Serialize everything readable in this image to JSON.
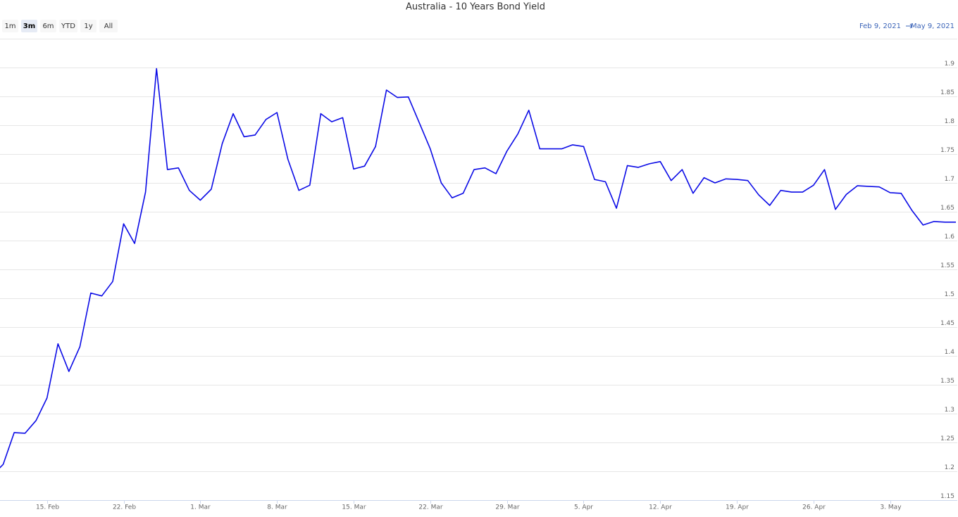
{
  "chart_data": {
    "type": "line",
    "title": "Australia - 10 Years Bond Yield",
    "range_buttons": [
      "1m",
      "3m",
      "6m",
      "YTD",
      "1y",
      "All"
    ],
    "selected_button": "3m",
    "range": {
      "from": "Feb 9, 2021",
      "to": "May 9, 2021"
    },
    "color": "#0a0ae6",
    "grid": true,
    "x": [
      "2021-02-10",
      "2021-02-11",
      "2021-02-12",
      "2021-02-13",
      "2021-02-14",
      "2021-02-15",
      "2021-02-16",
      "2021-02-17",
      "2021-02-18",
      "2021-02-19",
      "2021-02-20",
      "2021-02-21",
      "2021-02-22",
      "2021-02-23",
      "2021-02-24",
      "2021-02-25",
      "2021-02-26",
      "2021-02-27",
      "2021-02-28",
      "2021-03-01",
      "2021-03-02",
      "2021-03-03",
      "2021-03-04",
      "2021-03-05",
      "2021-03-06",
      "2021-03-07",
      "2021-03-08",
      "2021-03-09",
      "2021-03-10",
      "2021-03-11",
      "2021-03-12",
      "2021-03-13",
      "2021-03-14",
      "2021-03-15",
      "2021-03-16",
      "2021-03-17",
      "2021-03-18",
      "2021-03-19",
      "2021-03-20",
      "2021-03-21",
      "2021-03-22",
      "2021-03-23",
      "2021-03-24",
      "2021-03-25",
      "2021-03-26",
      "2021-03-27",
      "2021-03-28",
      "2021-03-29",
      "2021-03-30",
      "2021-03-31",
      "2021-04-01",
      "2021-04-02",
      "2021-04-03",
      "2021-04-04",
      "2021-04-05",
      "2021-04-06",
      "2021-04-07",
      "2021-04-08",
      "2021-04-09",
      "2021-04-10",
      "2021-04-11",
      "2021-04-12",
      "2021-04-13",
      "2021-04-14",
      "2021-04-15",
      "2021-04-16",
      "2021-04-17",
      "2021-04-18",
      "2021-04-19",
      "2021-04-20",
      "2021-04-21",
      "2021-04-22",
      "2021-04-23",
      "2021-04-24",
      "2021-04-25",
      "2021-04-26",
      "2021-04-27",
      "2021-04-28",
      "2021-04-29",
      "2021-04-30",
      "2021-05-01",
      "2021-05-02",
      "2021-05-03",
      "2021-05-04",
      "2021-05-05",
      "2021-05-06",
      "2021-05-07",
      "2021-05-08",
      "2021-05-09"
    ],
    "values": [
      1.193,
      1.212,
      1.267,
      1.266,
      1.288,
      1.327,
      1.421,
      1.373,
      1.416,
      1.509,
      1.504,
      1.529,
      1.629,
      1.595,
      1.684,
      1.898,
      1.723,
      1.726,
      1.687,
      1.67,
      1.689,
      1.768,
      1.82,
      1.78,
      1.783,
      1.81,
      1.822,
      1.741,
      1.687,
      1.696,
      1.82,
      1.806,
      1.813,
      1.724,
      1.729,
      1.763,
      1.861,
      1.848,
      1.849,
      1.804,
      1.759,
      1.7,
      1.674,
      1.682,
      1.723,
      1.726,
      1.716,
      1.755,
      1.785,
      1.826,
      1.759,
      1.759,
      1.759,
      1.766,
      1.763,
      1.706,
      1.702,
      1.656,
      1.73,
      1.727,
      1.733,
      1.737,
      1.704,
      1.723,
      1.682,
      1.709,
      1.7,
      1.707,
      1.706,
      1.704,
      1.679,
      1.661,
      1.687,
      1.684,
      1.684,
      1.696,
      1.723,
      1.654,
      1.68,
      1.695,
      1.694,
      1.693,
      1.683,
      1.682,
      1.652,
      1.627,
      1.633,
      1.632,
      1.632
    ],
    "xlim": [
      "2021-02-10",
      "2021-05-09"
    ],
    "xticks": [
      {
        "value": "2021-02-15",
        "label": "15. Feb"
      },
      {
        "value": "2021-02-22",
        "label": "22. Feb"
      },
      {
        "value": "2021-03-01",
        "label": "1. Mar"
      },
      {
        "value": "2021-03-08",
        "label": "8. Mar"
      },
      {
        "value": "2021-03-15",
        "label": "15. Mar"
      },
      {
        "value": "2021-03-22",
        "label": "22. Mar"
      },
      {
        "value": "2021-03-29",
        "label": "29. Mar"
      },
      {
        "value": "2021-04-05",
        "label": "5. Apr"
      },
      {
        "value": "2021-04-12",
        "label": "12. Apr"
      },
      {
        "value": "2021-04-19",
        "label": "19. Apr"
      },
      {
        "value": "2021-04-26",
        "label": "26. Apr"
      },
      {
        "value": "2021-05-03",
        "label": "3. May"
      }
    ],
    "ylim": [
      1.15,
      1.95
    ],
    "yticks": [
      1.15,
      1.2,
      1.25,
      1.3,
      1.35,
      1.4,
      1.45,
      1.5,
      1.55,
      1.6,
      1.65,
      1.7,
      1.75,
      1.8,
      1.85,
      1.9
    ]
  }
}
